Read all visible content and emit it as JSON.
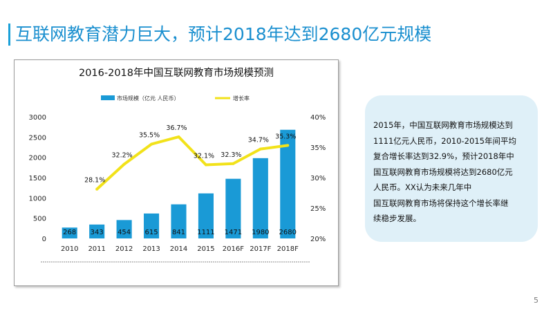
{
  "page": {
    "title": "互联网教育潜力巨大，预计2018年达到2680亿元规模",
    "page_number": "5"
  },
  "note": {
    "lines": [
      "2015年，中国互联网教育市场规模达到",
      "1111亿元人民币，2010-2015年间平均",
      "复合增长率达到32.9%，预计2018年中",
      "国互联网教育市场规模将达到2680亿元",
      "人民币。XX认为未来几年中",
      "国互联网教育市场将保持这个增长率继",
      "续稳步发展。"
    ]
  },
  "colors": {
    "bar": "#1a9ad6",
    "line": "#f2e21a",
    "accent": "#1a8fcf"
  },
  "chart_data": {
    "type": "bar+line",
    "title": "2016-2018年中国互联网教育市场规模预测",
    "legend": [
      "市场规模（亿元 人民币）",
      "增长率"
    ],
    "legend_position": "top",
    "categories": [
      "2010",
      "2011",
      "2012",
      "2013",
      "2014",
      "2015",
      "2016F",
      "2017F",
      "2018F"
    ],
    "series": [
      {
        "name": "市场规模（亿元 人民币）",
        "type": "bar",
        "axis": "left",
        "values": [
          268,
          343,
          454,
          615,
          841,
          1111,
          1471,
          1980,
          2680
        ],
        "labels": [
          "268",
          "343",
          "454",
          "615",
          "841",
          "1111",
          "1471",
          "1980",
          "2680"
        ]
      },
      {
        "name": "增长率",
        "type": "line",
        "axis": "right",
        "values": [
          null,
          28.1,
          32.2,
          35.5,
          36.7,
          32.1,
          32.3,
          34.7,
          35.3
        ],
        "labels": [
          "",
          "28.1%",
          "32.2%",
          "35.5%",
          "36.7%",
          "32.1%",
          "32.3%",
          "34.7%",
          "35.3%"
        ]
      }
    ],
    "y_left": {
      "range": [
        0,
        3000
      ],
      "ticks": [
        "0",
        "500",
        "1000",
        "1500",
        "2000",
        "2500",
        "3000"
      ]
    },
    "y_right": {
      "range": [
        20,
        40
      ],
      "ticks": [
        "20%",
        "25%",
        "30%",
        "35%",
        "40%"
      ]
    }
  }
}
